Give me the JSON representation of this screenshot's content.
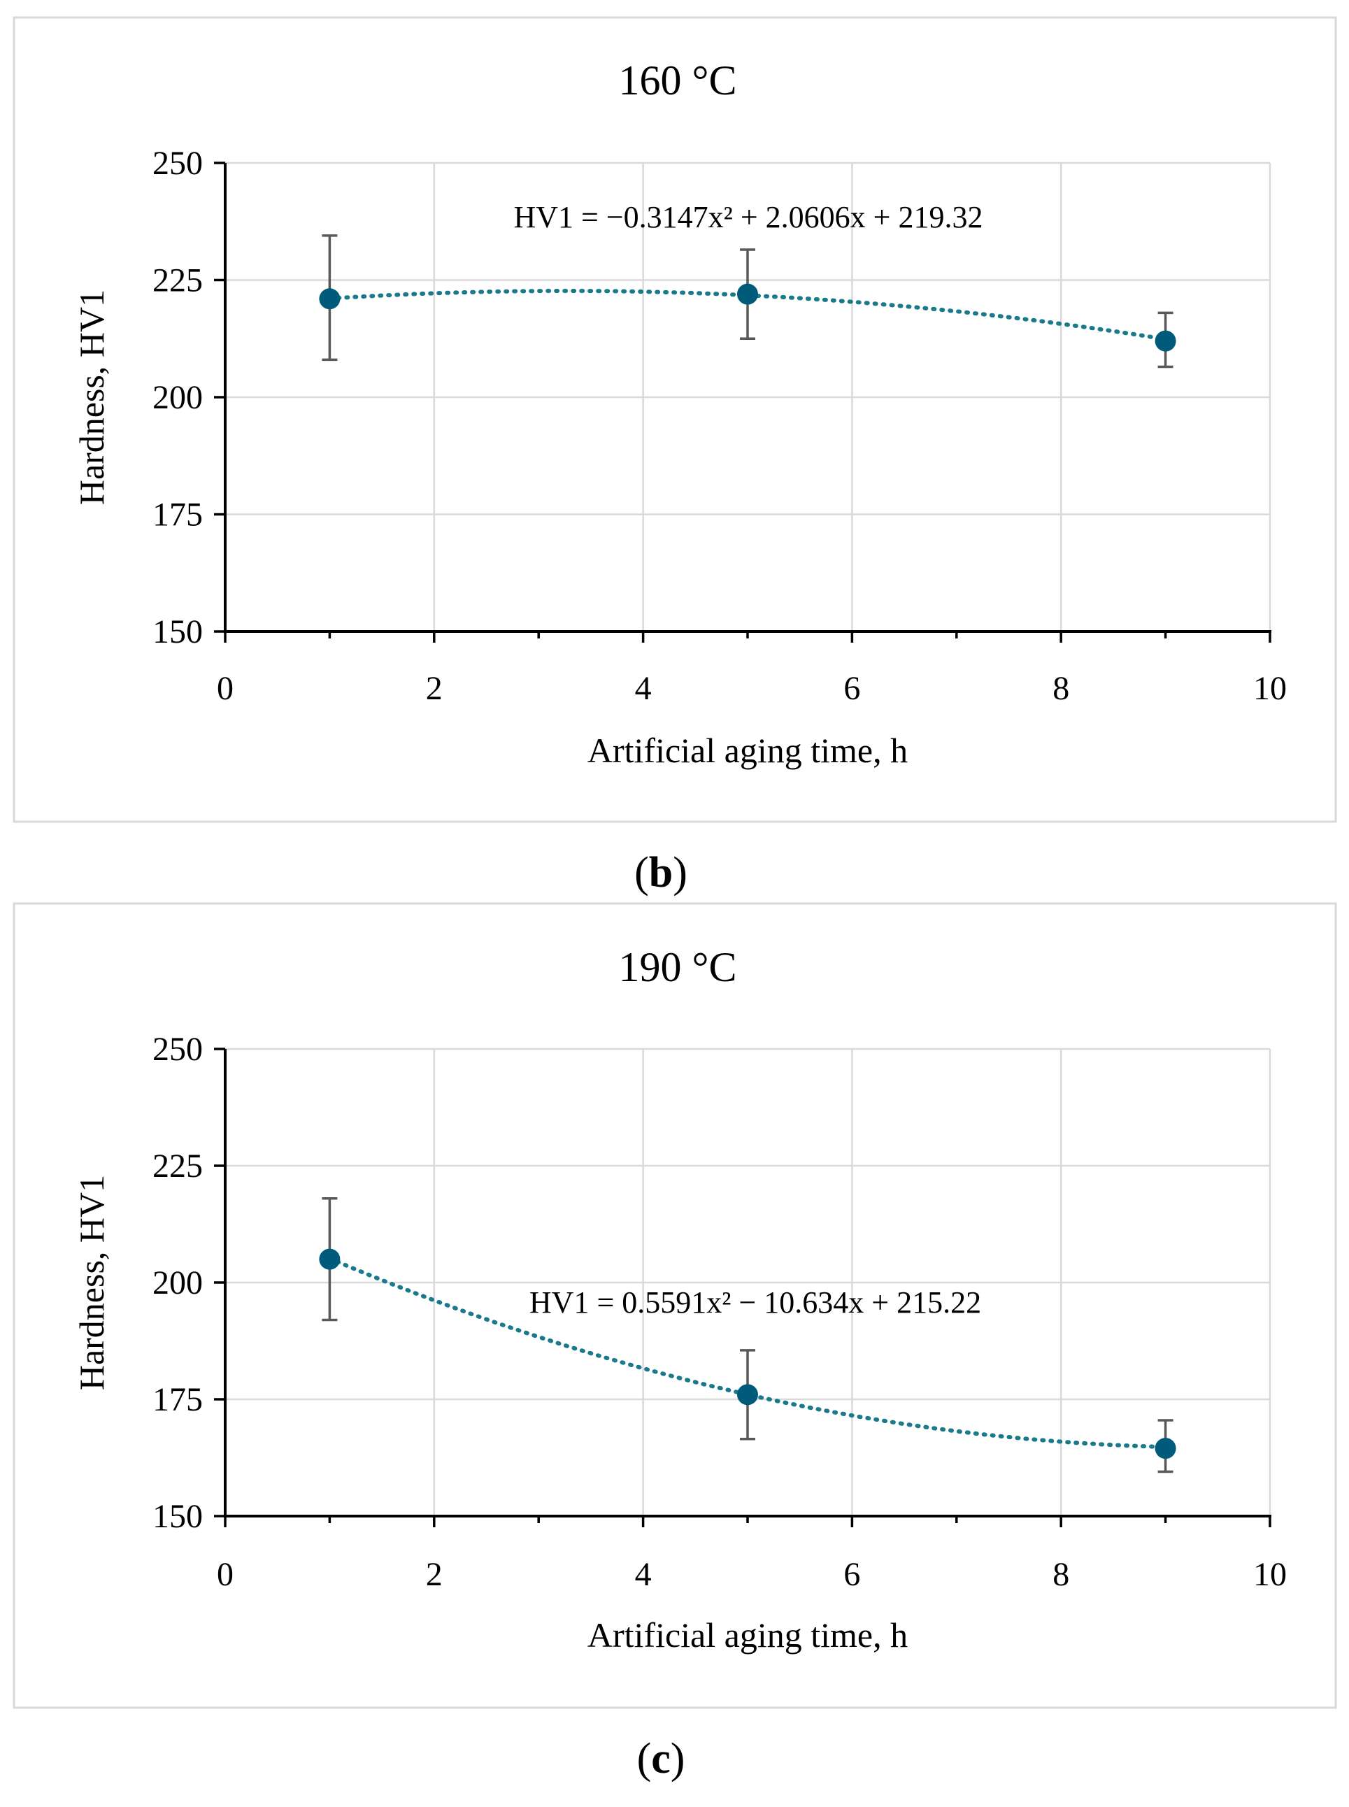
{
  "colors": {
    "series": "#005a7a",
    "trend": "#1a7a8c",
    "error_bar": "#595959",
    "grid": "#d9d9d9"
  },
  "chart_data": [
    {
      "type": "scatter",
      "panel_label": "b",
      "title": "160 °C",
      "xlabel": "Artificial aging time, h",
      "ylabel": "Hardness, HV1",
      "xlim": [
        0,
        10
      ],
      "ylim": [
        150,
        250
      ],
      "x_ticks": [
        0,
        2,
        4,
        6,
        8,
        10
      ],
      "x_minor_ticks": [
        1,
        3,
        5,
        7,
        9
      ],
      "y_ticks": [
        150,
        175,
        200,
        225,
        250
      ],
      "grid": true,
      "points": [
        {
          "x": 1,
          "y": 221,
          "err_low": 208,
          "err_high": 234.5
        },
        {
          "x": 5,
          "y": 222,
          "err_low": 212.5,
          "err_high": 231.5
        },
        {
          "x": 9,
          "y": 212,
          "err_low": 206.5,
          "err_high": 218
        }
      ],
      "trendline": {
        "type": "polynomial",
        "order": 2,
        "a": -0.3147,
        "b": 2.0606,
        "c": 219.32,
        "equation_label": "HV1 = −0.3147x² + 2.0606x + 219.32"
      }
    },
    {
      "type": "scatter",
      "panel_label": "c",
      "title": "190 °C",
      "xlabel": "Artificial aging time, h",
      "ylabel": "Hardness, HV1",
      "xlim": [
        0,
        10
      ],
      "ylim": [
        150,
        250
      ],
      "x_ticks": [
        0,
        2,
        4,
        6,
        8,
        10
      ],
      "x_minor_ticks": [
        1,
        3,
        5,
        7,
        9
      ],
      "y_ticks": [
        150,
        175,
        200,
        225,
        250
      ],
      "grid": true,
      "points": [
        {
          "x": 1,
          "y": 205,
          "err_low": 192,
          "err_high": 218
        },
        {
          "x": 5,
          "y": 176,
          "err_low": 166.5,
          "err_high": 185.5
        },
        {
          "x": 9,
          "y": 164.5,
          "err_low": 159.5,
          "err_high": 170.5
        }
      ],
      "trendline": {
        "type": "polynomial",
        "order": 2,
        "a": 0.5591,
        "b": -10.634,
        "c": 215.22,
        "equation_label": "HV1 = 0.5591x² − 10.634x + 215.22"
      }
    }
  ]
}
